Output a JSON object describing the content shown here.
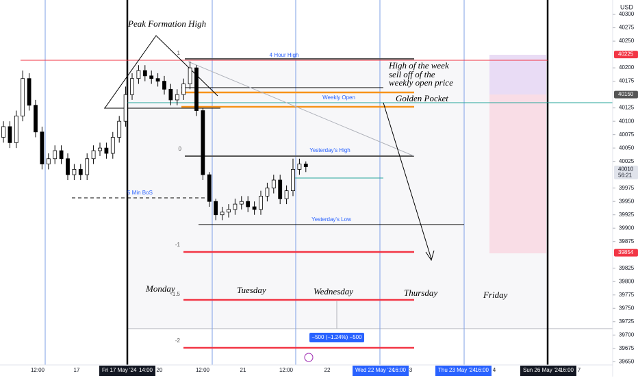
{
  "chart_data": {
    "type": "candlestick",
    "open": [
      40070,
      40090,
      40060,
      40110,
      40180,
      40130,
      40080,
      40020,
      40030,
      40045,
      40030,
      40000,
      40010,
      40000,
      40030,
      40045,
      40050,
      40040,
      40070,
      40100,
      40150,
      40180,
      40195,
      40185,
      40180,
      40175,
      40160,
      40140,
      40150,
      40170,
      40200,
      40120,
      40000,
      39950,
      39925,
      39930,
      39935,
      39945,
      39950,
      39940,
      39935,
      39960,
      39975,
      39990,
      39955,
      39970,
      40010,
      40020
    ],
    "high": [
      40100,
      40100,
      40120,
      40195,
      40190,
      40140,
      40090,
      40040,
      40055,
      40055,
      40040,
      40020,
      40020,
      40040,
      40055,
      40060,
      40060,
      40080,
      40110,
      40165,
      40190,
      40205,
      40205,
      40195,
      40190,
      40185,
      40170,
      40160,
      40180,
      40212,
      40205,
      40125,
      40005,
      39955,
      39940,
      39945,
      39955,
      39960,
      39960,
      39950,
      39970,
      39985,
      40000,
      40000,
      39980,
      40030,
      40030,
      40025
    ],
    "low": [
      40060,
      40050,
      40050,
      40100,
      40120,
      40070,
      40010,
      40010,
      40020,
      40020,
      39990,
      39990,
      39990,
      39990,
      40020,
      40035,
      40030,
      40030,
      40060,
      40090,
      40140,
      40170,
      40175,
      40170,
      40165,
      40150,
      40130,
      40130,
      40140,
      40160,
      40110,
      39990,
      39940,
      39915,
      39915,
      39920,
      39925,
      39935,
      39930,
      39925,
      39925,
      39950,
      39965,
      39945,
      39945,
      39960,
      40000,
      40005
    ],
    "close": [
      40090,
      40060,
      40110,
      40180,
      40130,
      40080,
      40020,
      40030,
      40045,
      40030,
      40000,
      40010,
      40000,
      40030,
      40045,
      40050,
      40040,
      40070,
      40100,
      40150,
      40180,
      40195,
      40185,
      40180,
      40175,
      40160,
      40140,
      40150,
      40170,
      40200,
      40120,
      40000,
      39950,
      39925,
      39930,
      39935,
      39945,
      39950,
      39940,
      39935,
      39960,
      39975,
      39990,
      39955,
      39970,
      40010,
      40020,
      40015
    ],
    "ylim": [
      39644,
      40327
    ],
    "yticks": [
      40300,
      40275,
      40250,
      40200,
      40175,
      40125,
      40100,
      40075,
      40050,
      40025,
      39975,
      39950,
      39925,
      39900,
      39875,
      39825,
      39800,
      39775,
      39750,
      39725,
      39700,
      39675,
      39650
    ],
    "currency": "USD",
    "price_badges": [
      {
        "value": 40225,
        "color": "#f23645"
      },
      {
        "value": 40150,
        "color": "#555555"
      },
      {
        "value": 40010,
        "color": "#e0e3eb"
      },
      {
        "value": 39854,
        "color": "#f23645"
      }
    ],
    "countdown": "56:21",
    "time_labels": [
      "12:00",
      "17",
      "20",
      "12:00",
      "21",
      "12:00",
      "22",
      "3",
      "4",
      "7"
    ],
    "time_badges": [
      {
        "date": "Fri 17 May '24",
        "time": "14:00"
      },
      {
        "date": "Wed 22 May '24",
        "time": "16:00"
      },
      {
        "date": "Thu 23 May '24",
        "time": "16:00"
      },
      {
        "date": "Sun 26 May '24",
        "time": "16:00"
      }
    ],
    "annotations": {
      "peak": "Peak Formation High",
      "high_week": [
        "High of the week",
        "sell off of the",
        "weekly open price"
      ],
      "golden": "Golden Pocket",
      "days": [
        "Monday",
        "Tuesday",
        "Wednesday",
        "Thursday",
        "Friday"
      ],
      "levels": [
        "4 Hour High",
        "Weekly Open",
        "Yesterday's High",
        "Yesterday's Low",
        "5 Min BoS"
      ],
      "fib": [
        "1",
        "0",
        "-1",
        "-1.5",
        "-2"
      ],
      "measure": "−500 (−1.24%) −500"
    }
  }
}
